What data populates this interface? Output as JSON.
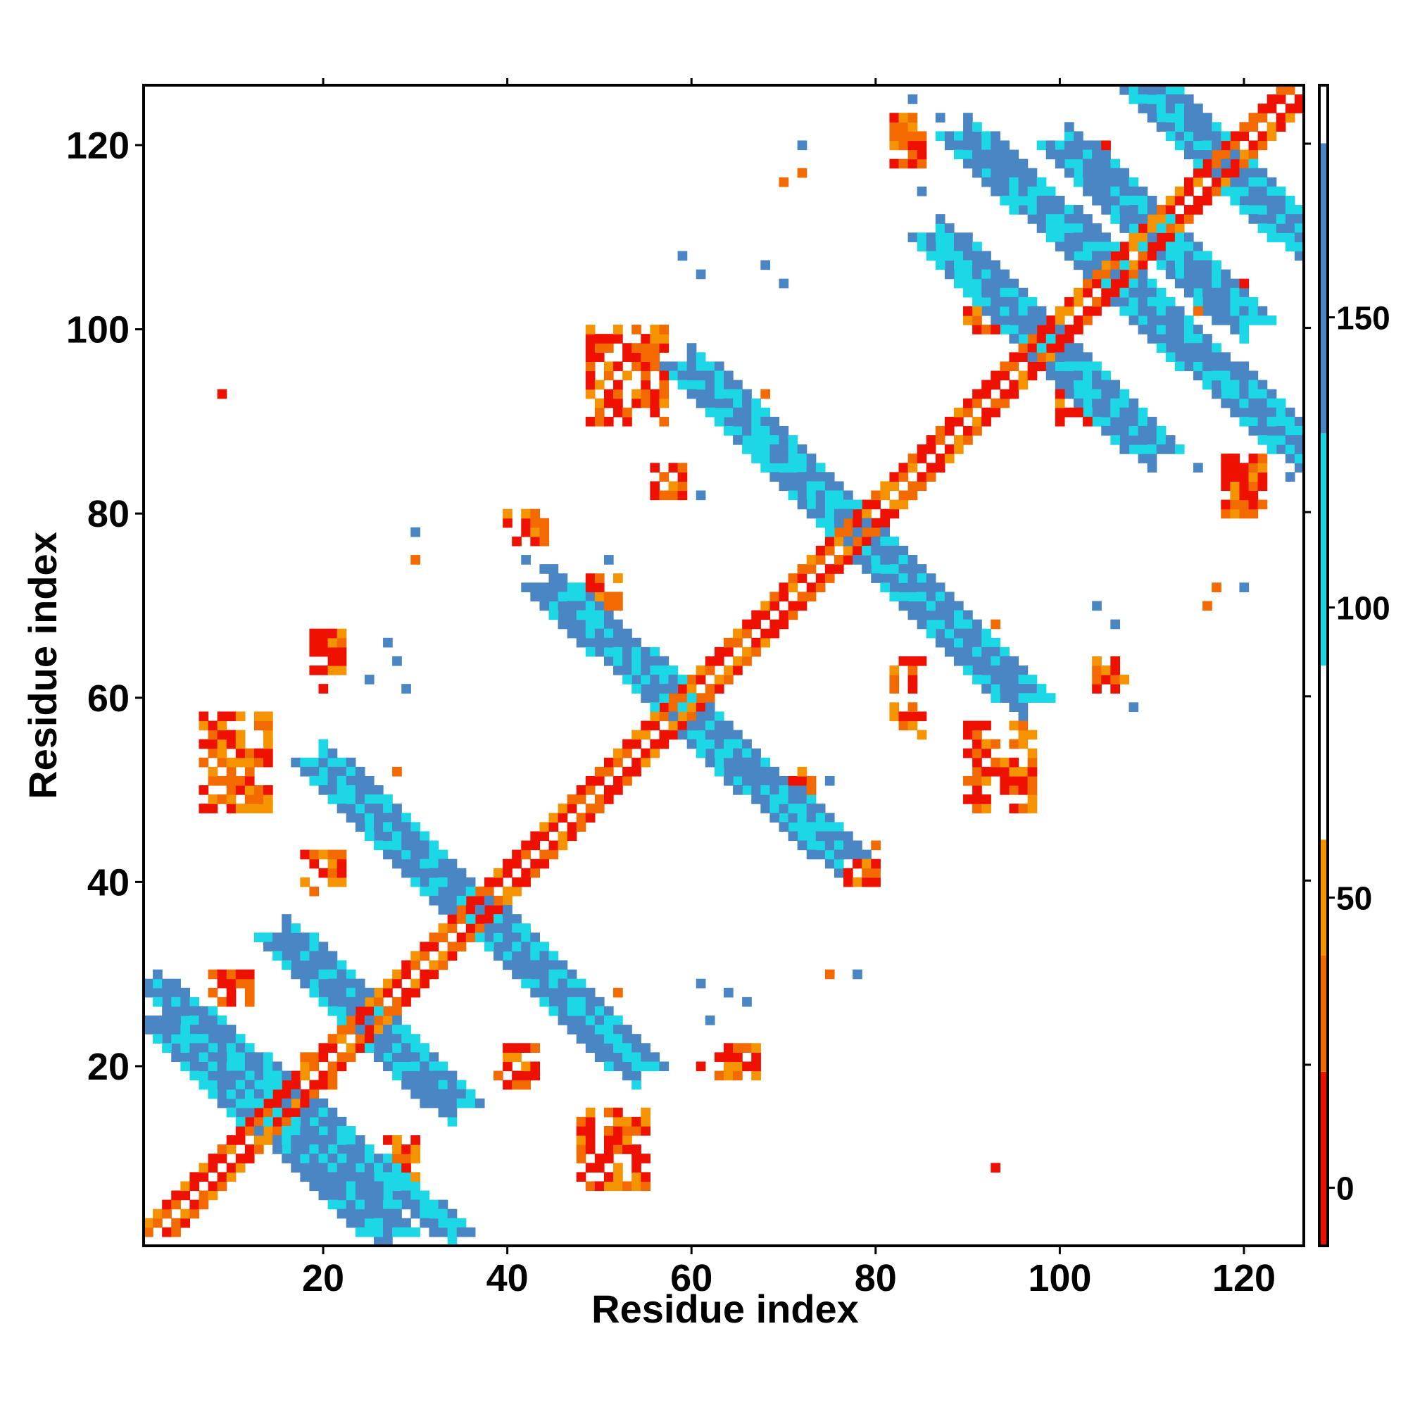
{
  "chart_data": {
    "type": "heatmap",
    "title": "",
    "xlabel": "Residue index",
    "ylabel": "Residue index",
    "xlim": [
      1,
      126
    ],
    "ylim": [
      1,
      126
    ],
    "x_ticks": [
      20,
      40,
      60,
      80,
      100,
      120
    ],
    "y_ticks": [
      20,
      40,
      60,
      80,
      100,
      120
    ],
    "grid": false,
    "colorbar": {
      "range": [
        -10,
        190
      ],
      "tick_values": [
        0,
        50,
        100,
        150
      ],
      "tick_labels": [
        "0",
        "50",
        "100",
        "150"
      ],
      "bands": [
        {
          "from": -10,
          "to": 20,
          "color": "#ee1100"
        },
        {
          "from": 20,
          "to": 40,
          "color": "#f26a00"
        },
        {
          "from": 40,
          "to": 60,
          "color": "#f59300"
        },
        {
          "from": 60,
          "to": 90,
          "color": "#ffffff"
        },
        {
          "from": 90,
          "to": 130,
          "color": "#1cd7e6"
        },
        {
          "from": 130,
          "to": 180,
          "color": "#4a86c3"
        },
        {
          "from": 180,
          "to": 190,
          "color": "#ffffff"
        }
      ]
    },
    "colors": {
      "parallel_strong": "#ee1100",
      "parallel_mid": "#f26a00",
      "parallel_weak": "#f59300",
      "antiparallel_weak": "#1cd7e6",
      "antiparallel_strong": "#4a86c3"
    },
    "segments": [
      {
        "type": "diag",
        "x0": 2,
        "y0": 2,
        "x1": 126,
        "y1": 126,
        "w": 2,
        "cls": "mix-red"
      },
      {
        "type": "anti",
        "x0": 2,
        "y0": 29,
        "x1": 34,
        "y1": 2,
        "w": 2,
        "cls": "mix-blue"
      },
      {
        "type": "anti",
        "x0": 3,
        "y0": 25,
        "x1": 27,
        "y1": 2,
        "w": 3,
        "cls": "mix-blue"
      },
      {
        "type": "anti",
        "x0": 9,
        "y0": 22,
        "x1": 25,
        "y1": 6,
        "w": 3,
        "cls": "mix-blue"
      },
      {
        "type": "anti",
        "x0": 16,
        "y0": 34,
        "x1": 34,
        "y1": 16,
        "w": 3,
        "cls": "mix-blue"
      },
      {
        "type": "anti",
        "x0": 20,
        "y0": 53,
        "x1": 54,
        "y1": 20,
        "w": 3,
        "cls": "mix-blue"
      },
      {
        "type": "anti",
        "x0": 45,
        "y0": 72,
        "x1": 76,
        "y1": 43,
        "w": 3,
        "cls": "mix-blue"
      },
      {
        "type": "anti",
        "x0": 60,
        "y0": 96,
        "x1": 96,
        "y1": 60,
        "w": 3,
        "cls": "mix-blue"
      },
      {
        "type": "anti",
        "x0": 87,
        "y0": 110,
        "x1": 110,
        "y1": 87,
        "w": 3,
        "cls": "mix-blue"
      },
      {
        "type": "anti",
        "x0": 90,
        "y0": 121,
        "x1": 126,
        "y1": 87,
        "w": 3,
        "cls": "mix-blue"
      },
      {
        "type": "anti",
        "x0": 101,
        "y0": 120,
        "x1": 120,
        "y1": 101,
        "w": 3,
        "cls": "mix-blue"
      },
      {
        "type": "anti",
        "x0": 110,
        "y0": 126,
        "x1": 126,
        "y1": 110,
        "w": 3,
        "cls": "mix-blue"
      }
    ],
    "clusters": [
      {
        "x": [
          48,
          55
        ],
        "y": [
          7,
          15
        ],
        "cls": "mix-red"
      },
      {
        "x": [
          7,
          14
        ],
        "y": [
          48,
          58
        ],
        "cls": "mix-red"
      },
      {
        "x": [
          49,
          57
        ],
        "y": [
          90,
          100
        ],
        "cls": "mix-red"
      },
      {
        "x": [
          90,
          97
        ],
        "y": [
          48,
          57
        ],
        "cls": "mix-red"
      },
      {
        "x": [
          82,
          85
        ],
        "y": [
          118,
          123
        ],
        "cls": "mix-red"
      },
      {
        "x": [
          118,
          122
        ],
        "y": [
          80,
          86
        ],
        "cls": "mix-red"
      },
      {
        "x": [
          40,
          44
        ],
        "y": [
          77,
          80
        ],
        "cls": "mix-red"
      },
      {
        "x": [
          77,
          80
        ],
        "y": [
          40,
          44
        ],
        "cls": "mix-red"
      },
      {
        "x": [
          27,
          30
        ],
        "y": [
          8,
          12
        ],
        "cls": "mix-red"
      },
      {
        "x": [
          8,
          12
        ],
        "y": [
          27,
          30
        ],
        "cls": "mix-red"
      },
      {
        "x": [
          18,
          22
        ],
        "y": [
          40,
          43
        ],
        "cls": "mix-red"
      },
      {
        "x": [
          40,
          43
        ],
        "y": [
          18,
          22
        ],
        "cls": "mix-red"
      },
      {
        "x": [
          56,
          59
        ],
        "y": [
          82,
          85
        ],
        "cls": "mix-red"
      },
      {
        "x": [
          82,
          85
        ],
        "y": [
          56,
          59
        ],
        "cls": "mix-red"
      },
      {
        "x": [
          63,
          67
        ],
        "y": [
          19,
          22
        ],
        "cls": "mix-red"
      },
      {
        "x": [
          19,
          22
        ],
        "y": [
          63,
          67
        ],
        "cls": "mix-red"
      },
      {
        "x": [
          82,
          85
        ],
        "y": [
          61,
          64
        ],
        "cls": "mix-red"
      },
      {
        "x": [
          104,
          107
        ],
        "y": [
          61,
          64
        ],
        "cls": "mix-red"
      },
      {
        "x": [
          100,
          104
        ],
        "y": [
          90,
          93
        ],
        "cls": "mix-red"
      },
      {
        "x": [
          90,
          93
        ],
        "y": [
          100,
          104
        ],
        "cls": "mix-red"
      },
      {
        "x": [
          115,
          120
        ],
        "y": [
          102,
          105
        ],
        "cls": "mix-red"
      },
      {
        "x": [
          102,
          105
        ],
        "y": [
          115,
          120
        ],
        "cls": "mix-red"
      },
      {
        "x": [
          70,
          73
        ],
        "y": [
          49,
          52
        ],
        "cls": "mix-red"
      },
      {
        "x": [
          49,
          52
        ],
        "y": [
          70,
          73
        ],
        "cls": "mix-red"
      }
    ],
    "points": [
      [
        9,
        93,
        "r"
      ],
      [
        93,
        9,
        "r"
      ],
      [
        75,
        30,
        "o"
      ],
      [
        78,
        30,
        "b"
      ],
      [
        30,
        75,
        "o"
      ],
      [
        30,
        78,
        "b"
      ],
      [
        72,
        120,
        "b"
      ],
      [
        72,
        117,
        "o"
      ],
      [
        120,
        72,
        "b"
      ],
      [
        117,
        72,
        "o"
      ],
      [
        68,
        107,
        "b"
      ],
      [
        70,
        105,
        "b"
      ],
      [
        106,
        68,
        "b"
      ],
      [
        104,
        70,
        "b"
      ],
      [
        30,
        78,
        "b"
      ],
      [
        29,
        61,
        "b"
      ],
      [
        61,
        29,
        "b"
      ],
      [
        20,
        61,
        "r"
      ],
      [
        61,
        20,
        "r"
      ],
      [
        106,
        61,
        "b"
      ],
      [
        108,
        59,
        "b"
      ],
      [
        59,
        108,
        "b"
      ],
      [
        61,
        106,
        "b"
      ],
      [
        68,
        93,
        "o"
      ],
      [
        93,
        68,
        "o"
      ],
      [
        75,
        51,
        "b"
      ],
      [
        51,
        75,
        "b"
      ],
      [
        72,
        46,
        "b"
      ],
      [
        46,
        72,
        "b"
      ],
      [
        28,
        52,
        "o"
      ],
      [
        52,
        28,
        "o"
      ],
      [
        25,
        62,
        "b"
      ],
      [
        62,
        25,
        "b"
      ],
      [
        123,
        87,
        "b"
      ],
      [
        125,
        84,
        "b"
      ],
      [
        87,
        123,
        "b"
      ],
      [
        84,
        125,
        "b"
      ],
      [
        116,
        70,
        "o"
      ],
      [
        70,
        116,
        "o"
      ],
      [
        93,
        104,
        "o"
      ],
      [
        104,
        93,
        "o"
      ],
      [
        98,
        115,
        "o"
      ],
      [
        115,
        98,
        "o"
      ],
      [
        85,
        115,
        "b"
      ],
      [
        115,
        85,
        "b"
      ],
      [
        61,
        82,
        "b"
      ],
      [
        82,
        61,
        "b"
      ],
      [
        44,
        74,
        "b"
      ],
      [
        74,
        44,
        "b"
      ],
      [
        42,
        75,
        "b"
      ],
      [
        75,
        42,
        "b"
      ],
      [
        22,
        43,
        "o"
      ],
      [
        43,
        22,
        "o"
      ],
      [
        19,
        39,
        "o"
      ],
      [
        39,
        19,
        "o"
      ],
      [
        18,
        21,
        "o"
      ],
      [
        21,
        18,
        "o"
      ],
      [
        66,
        27,
        "b"
      ],
      [
        27,
        66,
        "b"
      ],
      [
        64,
        28,
        "b"
      ],
      [
        28,
        64,
        "b"
      ]
    ]
  }
}
